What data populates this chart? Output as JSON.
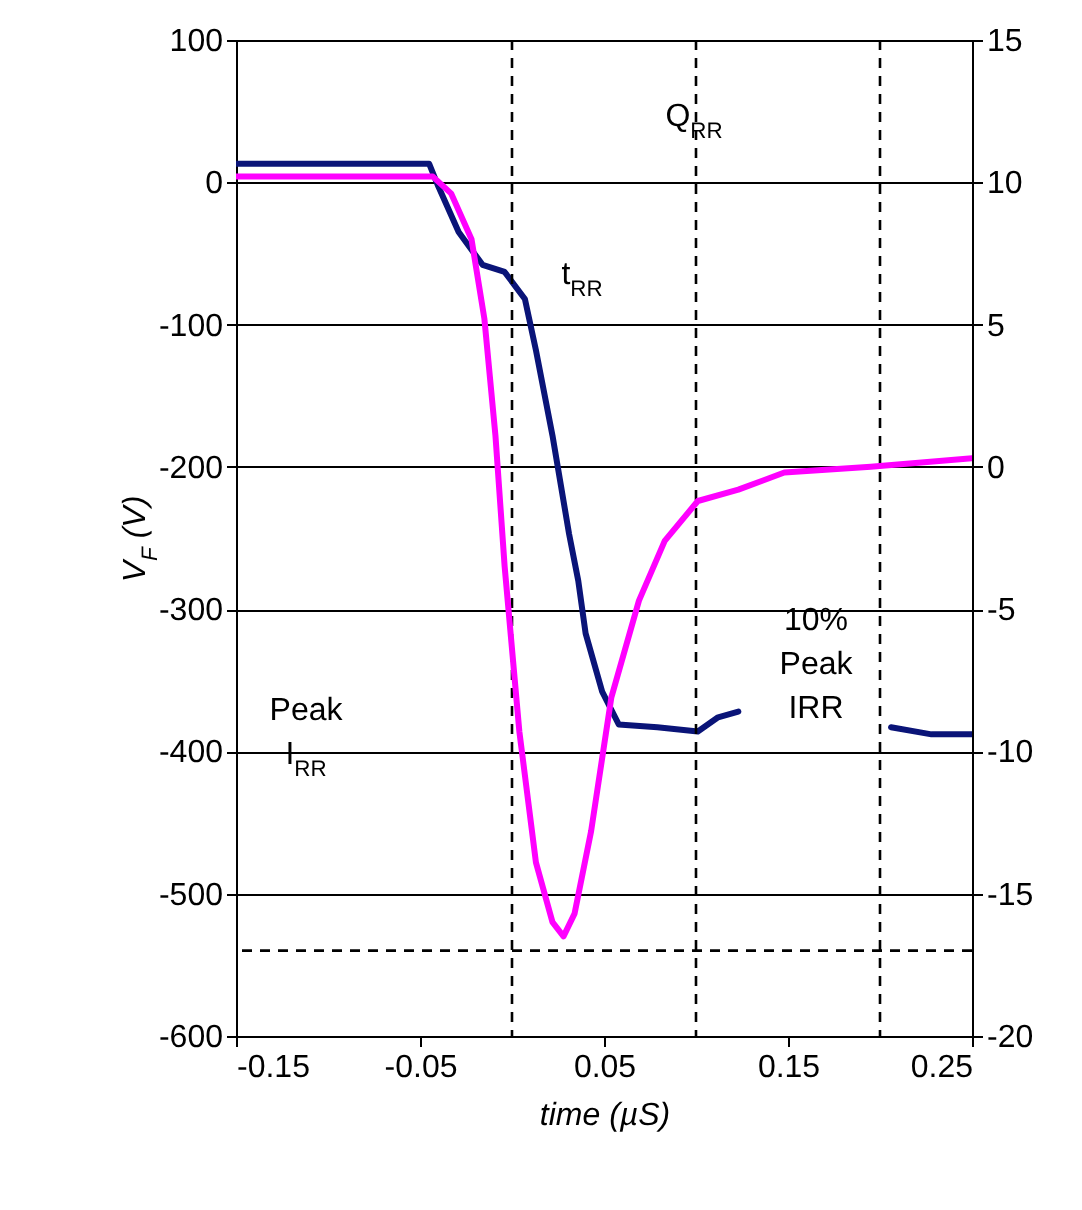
{
  "chart_data": {
    "type": "line",
    "xlabel": "time (µS)",
    "ylabel": "V$_{F}$ (V)",
    "xlim": [
      -0.15,
      0.25
    ],
    "xticks": [
      -0.15,
      -0.05,
      0.05,
      0.15,
      0.25
    ],
    "ylim": [
      -600,
      100
    ],
    "yticks": [
      -600,
      -500,
      -400,
      -300,
      -200,
      -100,
      0,
      100
    ],
    "y2lim": [
      -20,
      15
    ],
    "y2ticks": [
      -20,
      -15,
      -10,
      -5,
      0,
      5,
      10,
      15
    ],
    "grid": "y",
    "line_style": "solid",
    "marker": "none",
    "series": [
      {
        "color": "#0a1478",
        "x": [
          -0.15,
          -0.1,
          -0.045,
          -0.04,
          -0.029,
          -0.016,
          -0.004,
          0.007,
          0.013,
          0.022,
          0.031,
          0.036,
          0.04,
          0.049,
          0.058,
          0.079,
          0.101,
          0.112,
          0.123,
          0.16,
          0.206,
          0.228,
          0.25
        ],
        "values": [
          13,
          13,
          13,
          -3,
          -35,
          -58,
          -63,
          -82,
          -118,
          -178,
          -247,
          -280,
          -317,
          -358,
          -381,
          -383,
          -386,
          -376,
          -372,
          null,
          -383,
          -388,
          -388
        ]
      },
      {
        "color": "#ff00ff",
        "axis": "y2",
        "x": [
          -0.15,
          -0.1,
          -0.043,
          -0.033,
          -0.022,
          -0.015,
          -0.009,
          -0.004,
          0.004,
          0.013,
          0.022,
          0.028,
          0.034,
          0.043,
          0.054,
          0.069,
          0.083,
          0.101,
          0.123,
          0.148,
          0.195,
          0.25
        ],
        "values": [
          10.2,
          10.2,
          10.2,
          9.6,
          8.0,
          5.2,
          1.1,
          -3.5,
          -9.3,
          -13.9,
          -16.0,
          -16.5,
          -15.7,
          -12.8,
          -8.1,
          -4.7,
          -2.6,
          -1.2,
          -0.8,
          -0.2,
          0.0,
          0.3
        ]
      }
    ],
    "ref_lines": [
      {
        "axis": "x",
        "value": 0,
        "color": "#000000",
        "line_style": "dashed"
      },
      {
        "axis": "x",
        "value": 0.1,
        "color": "#000000",
        "line_style": "dashed"
      },
      {
        "axis": "x",
        "value": 0.2,
        "color": "#000000",
        "line_style": "dashed"
      },
      {
        "axis": "y",
        "value": -540,
        "color": "#000000",
        "line_style": "dashed"
      }
    ],
    "annotations": [
      "Q$_{RR}$",
      "t$_{RR}$",
      "Peak I$_{RR}$",
      "10% Peak IRR"
    ]
  }
}
